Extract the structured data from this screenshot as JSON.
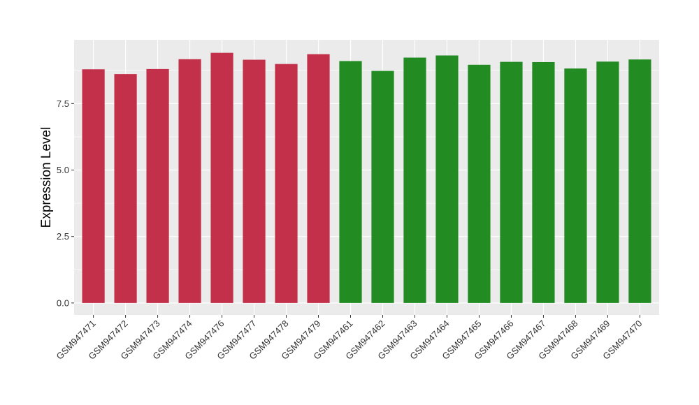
{
  "chart_data": {
    "type": "bar",
    "xlabel": "",
    "ylabel": "Expression Level",
    "ylim": [
      -0.45,
      9.9
    ],
    "y_ticks": [
      0.0,
      2.5,
      5.0,
      7.5
    ],
    "y_tick_labels": [
      "0.0",
      "2.5",
      "5.0",
      "7.5"
    ],
    "grid": true,
    "legend": "none",
    "categories": [
      "GSM947471",
      "GSM947472",
      "GSM947473",
      "GSM947474",
      "GSM947476",
      "GSM947477",
      "GSM947478",
      "GSM947479",
      "GSM947461",
      "GSM947462",
      "GSM947463",
      "GSM947464",
      "GSM947465",
      "GSM947466",
      "GSM947467",
      "GSM947468",
      "GSM947469",
      "GSM947470"
    ],
    "values": [
      8.79,
      8.61,
      8.8,
      9.17,
      9.41,
      9.15,
      8.99,
      9.36,
      9.1,
      8.73,
      9.23,
      9.31,
      8.96,
      9.07,
      9.06,
      8.82,
      9.08,
      9.16
    ],
    "groups": [
      "red",
      "red",
      "red",
      "red",
      "red",
      "red",
      "red",
      "red",
      "green",
      "green",
      "green",
      "green",
      "green",
      "green",
      "green",
      "green",
      "green",
      "green"
    ],
    "colors": {
      "red": "#c3304a",
      "green": "#228b22",
      "panel": "#ebebeb",
      "grid": "#ffffff",
      "tick": "#333333"
    }
  }
}
